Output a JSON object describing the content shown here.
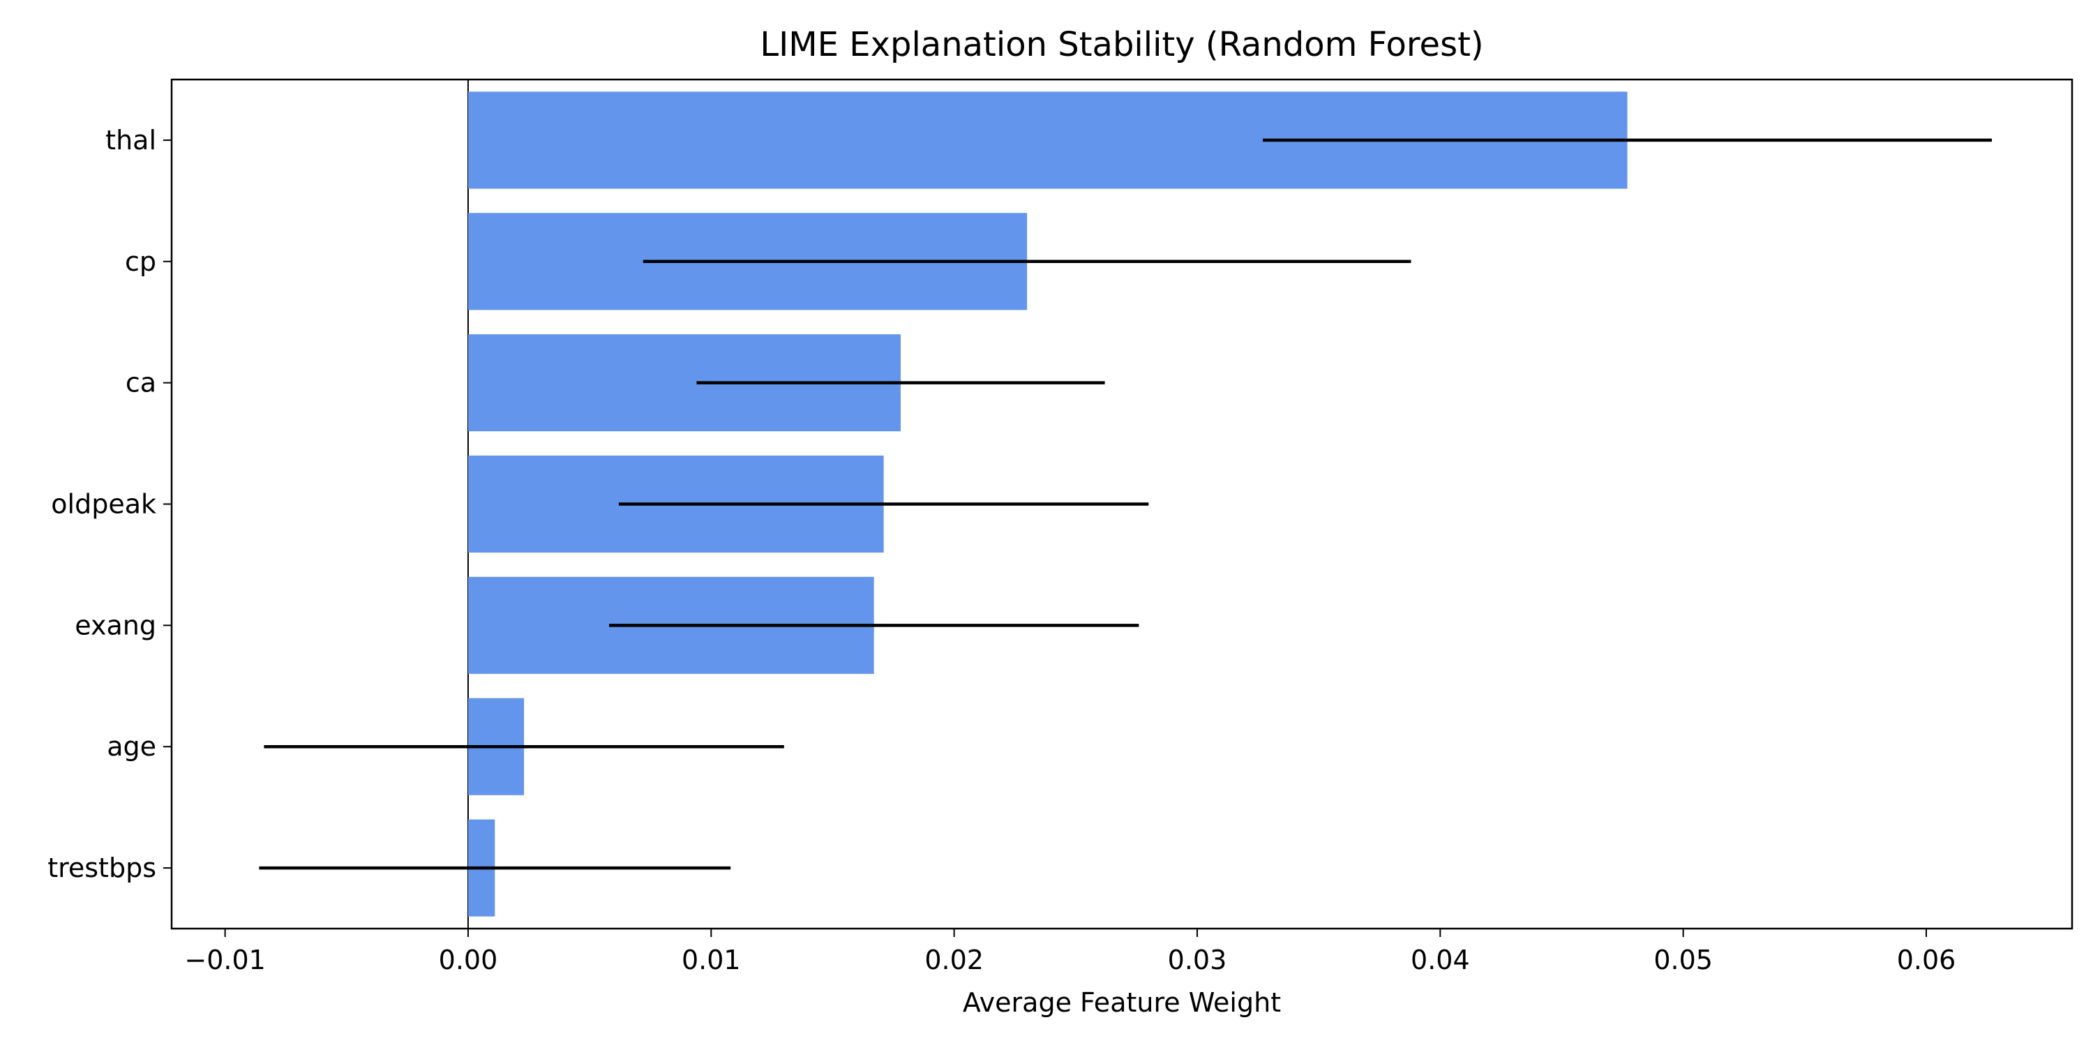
{
  "chart_data": {
    "type": "bar",
    "orientation": "horizontal",
    "title": "LIME Explanation Stability (Random Forest)",
    "xlabel": "Average Feature Weight",
    "ylabel": "",
    "xlim": [
      -0.0122,
      0.066
    ],
    "xticks": [
      -0.01,
      0.0,
      0.01,
      0.02,
      0.03,
      0.04,
      0.05,
      0.06
    ],
    "xtick_labels": [
      "−0.01",
      "0.00",
      "0.01",
      "0.02",
      "0.03",
      "0.04",
      "0.05",
      "0.06"
    ],
    "grid": false,
    "zero_line": true,
    "categories": [
      "thal",
      "cp",
      "ca",
      "oldpeak",
      "exang",
      "age",
      "trestbps"
    ],
    "values": [
      0.0477,
      0.023,
      0.0178,
      0.0171,
      0.0167,
      0.0023,
      0.0011
    ],
    "error": [
      0.015,
      0.0158,
      0.0084,
      0.0109,
      0.0109,
      0.0107,
      0.0097
    ],
    "colors": {
      "bar": "#6495ED",
      "errorbar": "#000000",
      "axis": "#000000"
    }
  }
}
